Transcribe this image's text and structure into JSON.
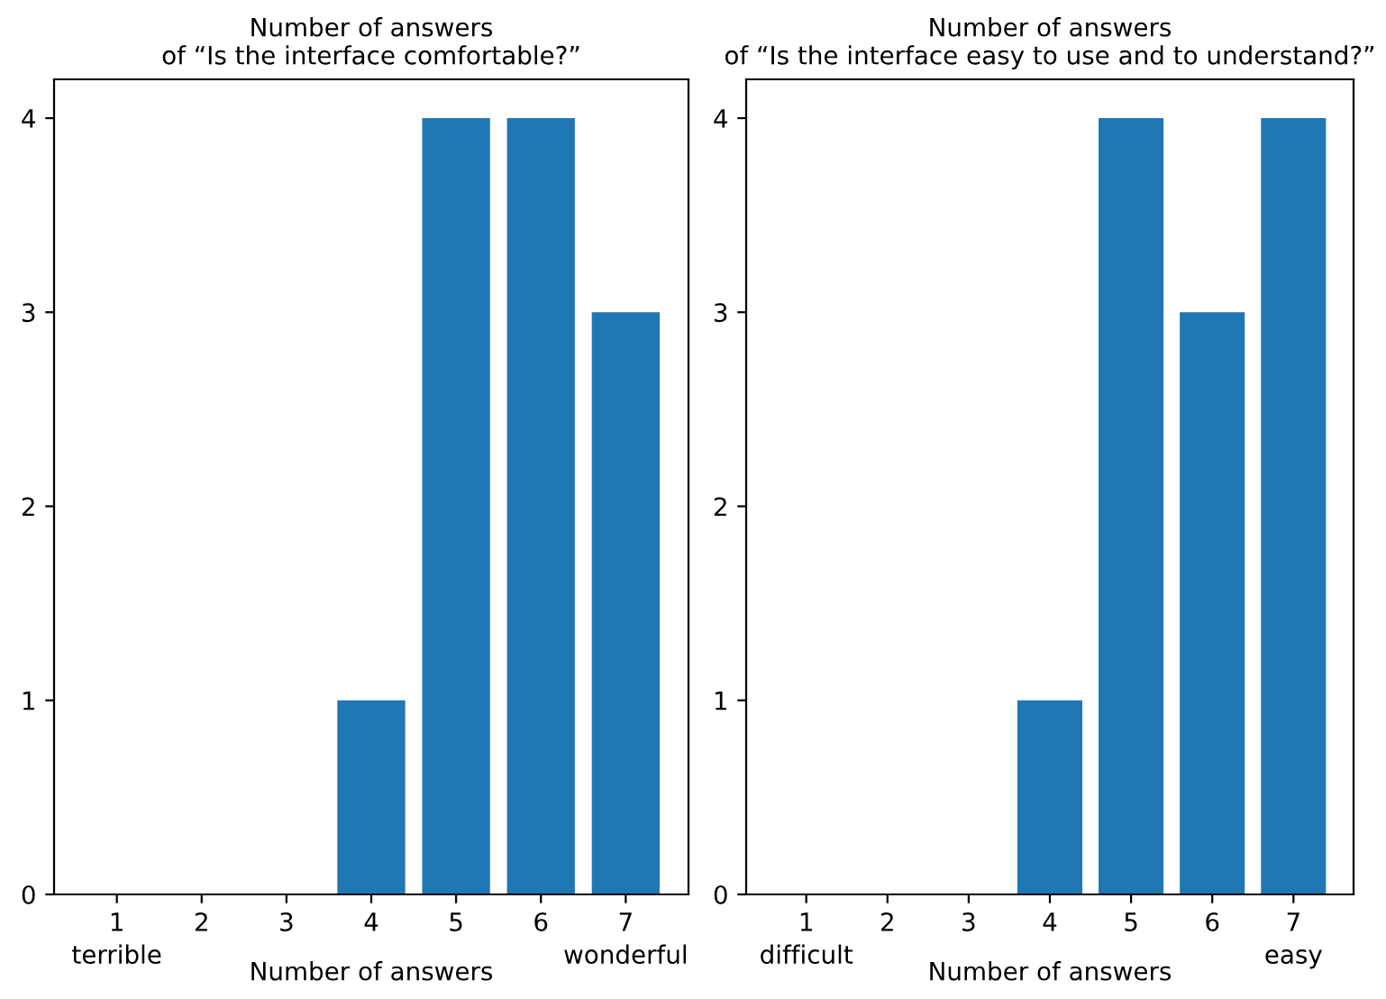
{
  "chart_data": [
    {
      "type": "bar",
      "title": "Number of answers\nof “Is the interface comfortable?”",
      "xlabel": "Number of answers",
      "categories": [
        "1",
        "2",
        "3",
        "4",
        "5",
        "6",
        "7"
      ],
      "values": [
        0,
        0,
        0,
        1,
        4,
        4,
        3
      ],
      "color": "#1f77b4",
      "ylim": [
        0,
        4.2
      ],
      "yticks": [
        0,
        1,
        2,
        3,
        4
      ],
      "grid": false,
      "annotations": [
        "terrible",
        "wonderful"
      ]
    },
    {
      "type": "bar",
      "title": "Number of answers\nof “Is the interface easy to use and to understand?”",
      "xlabel": "Number of answers",
      "categories": [
        "1",
        "2",
        "3",
        "4",
        "5",
        "6",
        "7"
      ],
      "values": [
        0,
        0,
        0,
        1,
        4,
        3,
        4
      ],
      "color": "#1f77b4",
      "ylim": [
        0,
        4.2
      ],
      "yticks": [
        0,
        1,
        2,
        3,
        4
      ],
      "grid": false,
      "annotations": [
        "difficult",
        "easy"
      ]
    }
  ]
}
